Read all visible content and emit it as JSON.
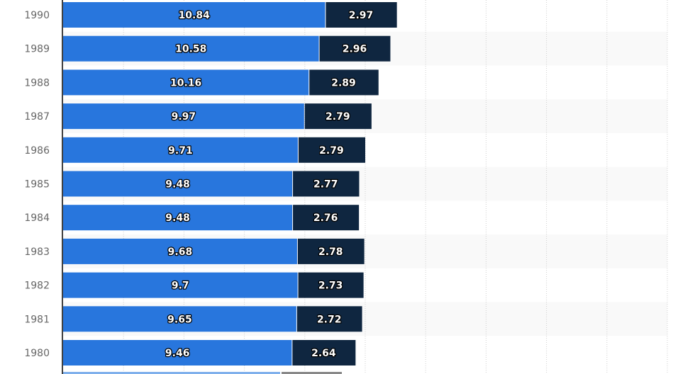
{
  "chart_data": {
    "type": "bar",
    "orientation": "horizontal",
    "stacked": true,
    "categories": [
      "1990",
      "1989",
      "1988",
      "1987",
      "1986",
      "1985",
      "1984",
      "1983",
      "1982",
      "1981",
      "1980"
    ],
    "series": [
      {
        "values": [
          10.84,
          10.58,
          10.16,
          9.97,
          9.71,
          9.48,
          9.48,
          9.68,
          9.7,
          9.65,
          9.46
        ],
        "color": "#2876dd"
      },
      {
        "values": [
          2.97,
          2.96,
          2.89,
          2.79,
          2.79,
          2.77,
          2.76,
          2.78,
          2.73,
          2.72,
          2.64
        ],
        "color": "#0f2640"
      }
    ],
    "xlim": [
      0,
      25
    ],
    "grid": true,
    "data_labels": [
      "10.84",
      "2.97",
      "10.58",
      "2.96",
      "10.16",
      "2.89",
      "9.97",
      "2.79",
      "9.71",
      "2.79",
      "9.48",
      "2.77",
      "9.48",
      "2.76",
      "9.68",
      "2.78",
      "9.7",
      "2.73",
      "9.65",
      "2.72",
      "9.46",
      "2.64"
    ]
  }
}
